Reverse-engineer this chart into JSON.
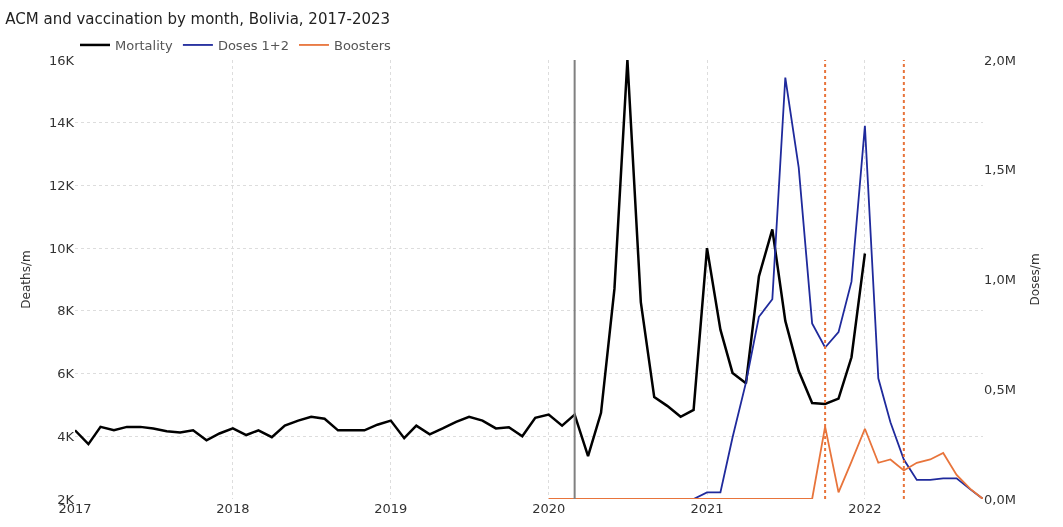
{
  "chart_data": {
    "type": "line",
    "title": "ACM and vaccination by month, Bolivia, 2017-2023",
    "ylabel": "Deaths/m",
    "y2label": "Doses/m",
    "series": [
      {
        "name": "Mortality",
        "color": "#000000",
        "x": [
          "2017-01",
          "2017-02",
          "2017-03",
          "2017-04",
          "2017-05",
          "2017-06",
          "2017-07",
          "2017-08",
          "2017-09",
          "2017-10",
          "2017-11",
          "2017-12",
          "2018-01",
          "2018-02",
          "2018-03",
          "2018-04",
          "2018-05",
          "2018-06",
          "2018-07",
          "2018-08",
          "2018-09",
          "2018-10",
          "2018-11",
          "2018-12",
          "2019-01",
          "2019-02",
          "2019-03",
          "2019-04",
          "2019-05",
          "2019-06",
          "2019-07",
          "2019-08",
          "2019-09",
          "2019-10",
          "2019-11",
          "2019-12",
          "2020-01",
          "2020-02",
          "2020-03",
          "2020-04",
          "2020-05",
          "2020-06",
          "2020-07",
          "2020-08",
          "2020-09",
          "2020-10",
          "2020-11",
          "2020-12",
          "2021-01",
          "2021-02",
          "2021-03",
          "2021-04",
          "2021-05",
          "2021-06",
          "2021-07",
          "2021-08",
          "2021-09",
          "2021-10",
          "2021-11",
          "2021-12",
          "2022-01"
        ],
        "values": [
          4190,
          3750,
          4300,
          4190,
          4300,
          4300,
          4250,
          4160,
          4120,
          4190,
          3870,
          4090,
          4250,
          4040,
          4190,
          3970,
          4340,
          4500,
          4620,
          4560,
          4190,
          4190,
          4190,
          4370,
          4500,
          3940,
          4340,
          4060,
          4250,
          4460,
          4620,
          4500,
          4250,
          4290,
          4000,
          4590,
          4690,
          4340,
          4690,
          3370,
          4750,
          8700,
          16000,
          8280,
          5250,
          4970,
          4620,
          4840,
          10000,
          7400,
          6020,
          5690,
          9100,
          10600,
          7680,
          6080,
          5060,
          5030,
          5200,
          6520,
          9830
        ]
      },
      {
        "name": "Doses 1+2",
        "color": "#1f2a9c",
        "axis": "y2",
        "x": [
          "2020-12",
          "2021-01",
          "2021-02",
          "2021-03",
          "2021-04",
          "2021-05",
          "2021-06",
          "2021-07",
          "2021-08",
          "2021-09",
          "2021-10",
          "2021-11",
          "2021-12",
          "2022-01",
          "2022-02",
          "2022-03",
          "2022-04",
          "2022-05",
          "2022-06",
          "2022-07",
          "2022-08",
          "2022-09",
          "2022-10"
        ],
        "values": [
          0,
          30000,
          30000,
          280000,
          530000,
          830000,
          910000,
          1920000,
          1510000,
          800000,
          690000,
          760000,
          990000,
          1700000,
          550000,
          350000,
          180000,
          87000,
          87000,
          94000,
          94000,
          45000,
          0
        ]
      },
      {
        "name": "Boosters",
        "color": "#e8743b",
        "axis": "y2",
        "x": [
          "2020-01",
          "2020-02",
          "2020-03",
          "2020-04",
          "2020-05",
          "2020-06",
          "2020-07",
          "2020-08",
          "2020-09",
          "2020-10",
          "2020-11",
          "2020-12",
          "2021-01",
          "2021-02",
          "2021-03",
          "2021-04",
          "2021-05",
          "2021-06",
          "2021-07",
          "2021-08",
          "2021-09",
          "2021-10",
          "2021-11",
          "2021-12",
          "2022-01",
          "2022-02",
          "2022-03",
          "2022-04",
          "2022-05",
          "2022-06",
          "2022-07",
          "2022-08",
          "2022-09",
          "2022-10"
        ],
        "values": [
          0,
          0,
          0,
          0,
          0,
          0,
          0,
          0,
          0,
          0,
          0,
          0,
          0,
          0,
          0,
          0,
          0,
          0,
          0,
          0,
          0,
          330000,
          30000,
          170000,
          320000,
          165000,
          180000,
          130000,
          165000,
          180000,
          210000,
          110000,
          47000,
          0
        ]
      }
    ],
    "xlim": [
      "2017-01",
      "2022-10"
    ],
    "xticks": [
      {
        "value": "2017-01",
        "label": "2017"
      },
      {
        "value": "2018-01",
        "label": "2018"
      },
      {
        "value": "2019-01",
        "label": "2019"
      },
      {
        "value": "2020-01",
        "label": "2020"
      },
      {
        "value": "2021-01",
        "label": "2021"
      },
      {
        "value": "2022-01",
        "label": "2022"
      }
    ],
    "ylim": [
      2000,
      16000
    ],
    "yticks": [
      {
        "value": 2000,
        "label": "2K"
      },
      {
        "value": 4000,
        "label": "4K"
      },
      {
        "value": 6000,
        "label": "6K"
      },
      {
        "value": 8000,
        "label": "8K"
      },
      {
        "value": 10000,
        "label": "10K"
      },
      {
        "value": 12000,
        "label": "12K"
      },
      {
        "value": 14000,
        "label": "14K"
      },
      {
        "value": 16000,
        "label": "16K"
      }
    ],
    "y2lim": [
      0,
      2000000
    ],
    "y2ticks": [
      {
        "value": 0,
        "label": "0,0M"
      },
      {
        "value": 500000,
        "label": "0,5M"
      },
      {
        "value": 1000000,
        "label": "1,0M"
      },
      {
        "value": 1500000,
        "label": "1,5M"
      },
      {
        "value": 2000000,
        "label": "2,0M"
      }
    ],
    "ref_lines": [
      {
        "axis": "x",
        "value": "2020-03",
        "color": "#808080",
        "line_style": "solid"
      },
      {
        "axis": "x",
        "value": "2021-10",
        "color": "#e8743b",
        "line_style": "dotted"
      },
      {
        "axis": "x",
        "value": "2022-04",
        "color": "#e8743b",
        "line_style": "dotted"
      }
    ],
    "grid": true,
    "legend": "top left",
    "marker": "none",
    "line_style": "solid"
  }
}
